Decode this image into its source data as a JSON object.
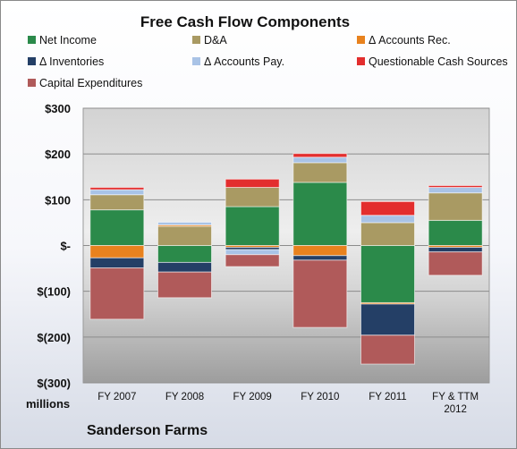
{
  "chart_data": {
    "type": "bar",
    "stacked": true,
    "title": "Free Cash Flow Components",
    "ylabel": "millions",
    "ylim": [
      -300,
      300
    ],
    "yticks": [
      300,
      200,
      100,
      0,
      -100,
      -200,
      -300
    ],
    "ytick_labels": [
      "$300",
      "$200",
      "$100",
      "$-",
      "$(100)",
      "$(200)",
      "$(300)"
    ],
    "categories": [
      [
        "FY 2007"
      ],
      [
        "FY 2008"
      ],
      [
        "FY 2009"
      ],
      [
        "FY 2010"
      ],
      [
        "FY 2011"
      ],
      [
        "FY & TTM",
        "2012"
      ]
    ],
    "series": [
      {
        "name": "Net Income",
        "color": "#2b8a4a",
        "values": [
          78,
          -37,
          85,
          138,
          -125,
          55
        ]
      },
      {
        "name": "D&A",
        "color": "#a99a63",
        "values": [
          33,
          42,
          42,
          43,
          50,
          60
        ]
      },
      {
        "name": "Δ Accounts Rec.",
        "color": "#e8821e",
        "values": [
          -27,
          3,
          -4,
          -22,
          -3,
          -4
        ]
      },
      {
        "name": "Δ Inventories",
        "color": "#243f66",
        "values": [
          -22,
          -21,
          -5,
          -10,
          -68,
          -10
        ]
      },
      {
        "name": "Δ Accounts Pay.",
        "color": "#a9c3e6",
        "values": [
          11,
          6,
          -11,
          12,
          16,
          12
        ]
      },
      {
        "name": "Questionable Cash Sources",
        "color": "#e32e2e",
        "values": [
          5,
          0,
          18,
          8,
          30,
          4
        ]
      },
      {
        "name": "Capital Expenditures",
        "color": "#b05a5a",
        "values": [
          -112,
          -56,
          -26,
          -147,
          -63,
          -51
        ]
      }
    ],
    "grid": true,
    "legend_position": "top"
  },
  "footer": {
    "units_label": "millions",
    "company": "Sanderson Farms"
  }
}
